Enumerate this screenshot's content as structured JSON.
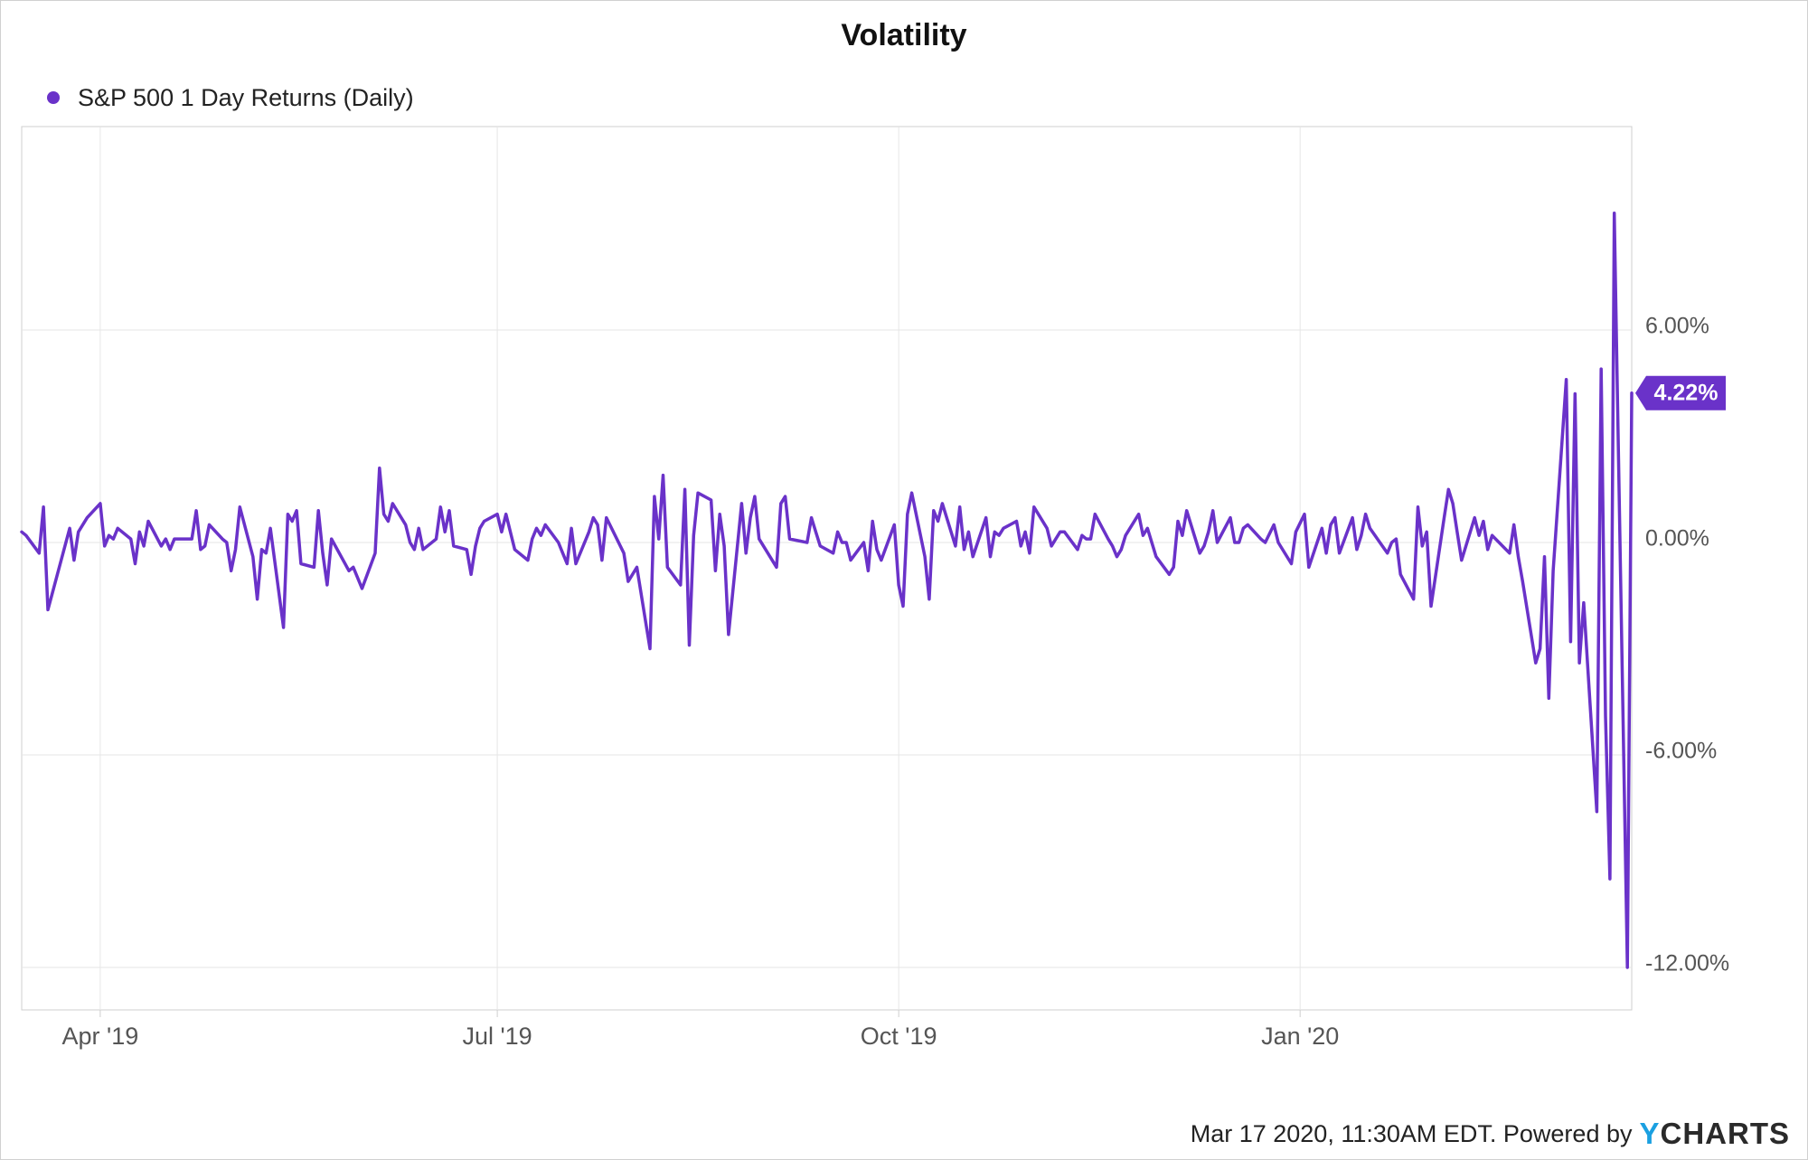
{
  "chart_data": {
    "type": "line",
    "title": "Volatility",
    "legend": {
      "position": "top-left"
    },
    "grid": true,
    "x_ticks": [
      "Apr '19",
      "Jul '19",
      "Oct '19",
      "Jan '20"
    ],
    "y_ticks": [
      "6.00%",
      "0.00%",
      "-6.00%",
      "-12.00%"
    ],
    "ylim": [
      -12.0,
      9.5
    ],
    "xlim": [
      "2019-03-14",
      "2020-03-17"
    ],
    "last_value_label": "4.22%",
    "series": [
      {
        "name": "S&P 500 1 Day Returns (Daily)",
        "color": "#6a32c9",
        "points": [
          [
            "2019-03-14",
            0.3
          ],
          [
            "2019-03-15",
            0.2
          ],
          [
            "2019-03-18",
            -0.3
          ],
          [
            "2019-03-19",
            1.0
          ],
          [
            "2019-03-20",
            -1.9
          ],
          [
            "2019-03-25",
            0.4
          ],
          [
            "2019-03-26",
            -0.5
          ],
          [
            "2019-03-27",
            0.3
          ],
          [
            "2019-03-29",
            0.7
          ],
          [
            "2019-04-01",
            1.1
          ],
          [
            "2019-04-02",
            -0.1
          ],
          [
            "2019-04-03",
            0.2
          ],
          [
            "2019-04-04",
            0.1
          ],
          [
            "2019-04-05",
            0.4
          ],
          [
            "2019-04-08",
            0.1
          ],
          [
            "2019-04-09",
            -0.6
          ],
          [
            "2019-04-10",
            0.3
          ],
          [
            "2019-04-11",
            -0.1
          ],
          [
            "2019-04-12",
            0.6
          ],
          [
            "2019-04-15",
            -0.1
          ],
          [
            "2019-04-16",
            0.1
          ],
          [
            "2019-04-17",
            -0.2
          ],
          [
            "2019-04-18",
            0.1
          ],
          [
            "2019-04-22",
            0.1
          ],
          [
            "2019-04-23",
            0.9
          ],
          [
            "2019-04-24",
            -0.2
          ],
          [
            "2019-04-25",
            -0.1
          ],
          [
            "2019-04-26",
            0.5
          ],
          [
            "2019-04-29",
            0.1
          ],
          [
            "2019-04-30",
            0.0
          ],
          [
            "2019-05-01",
            -0.8
          ],
          [
            "2019-05-02",
            -0.2
          ],
          [
            "2019-05-03",
            1.0
          ],
          [
            "2019-05-06",
            -0.4
          ],
          [
            "2019-05-07",
            -1.6
          ],
          [
            "2019-05-08",
            -0.2
          ],
          [
            "2019-05-09",
            -0.3
          ],
          [
            "2019-05-10",
            0.4
          ],
          [
            "2019-05-13",
            -2.4
          ],
          [
            "2019-05-14",
            0.8
          ],
          [
            "2019-05-15",
            0.6
          ],
          [
            "2019-05-16",
            0.9
          ],
          [
            "2019-05-17",
            -0.6
          ],
          [
            "2019-05-20",
            -0.7
          ],
          [
            "2019-05-21",
            0.9
          ],
          [
            "2019-05-22",
            -0.3
          ],
          [
            "2019-05-23",
            -1.2
          ],
          [
            "2019-05-24",
            0.1
          ],
          [
            "2019-05-28",
            -0.8
          ],
          [
            "2019-05-29",
            -0.7
          ],
          [
            "2019-05-31",
            -1.3
          ],
          [
            "2019-06-03",
            -0.3
          ],
          [
            "2019-06-04",
            2.1
          ],
          [
            "2019-06-05",
            0.8
          ],
          [
            "2019-06-06",
            0.6
          ],
          [
            "2019-06-07",
            1.1
          ],
          [
            "2019-06-10",
            0.5
          ],
          [
            "2019-06-11",
            0.0
          ],
          [
            "2019-06-12",
            -0.2
          ],
          [
            "2019-06-13",
            0.4
          ],
          [
            "2019-06-14",
            -0.2
          ],
          [
            "2019-06-17",
            0.1
          ],
          [
            "2019-06-18",
            1.0
          ],
          [
            "2019-06-19",
            0.3
          ],
          [
            "2019-06-20",
            0.9
          ],
          [
            "2019-06-21",
            -0.1
          ],
          [
            "2019-06-24",
            -0.2
          ],
          [
            "2019-06-25",
            -0.9
          ],
          [
            "2019-06-26",
            -0.1
          ],
          [
            "2019-06-27",
            0.4
          ],
          [
            "2019-06-28",
            0.6
          ],
          [
            "2019-07-01",
            0.8
          ],
          [
            "2019-07-02",
            0.3
          ],
          [
            "2019-07-03",
            0.8
          ],
          [
            "2019-07-05",
            -0.2
          ],
          [
            "2019-07-08",
            -0.5
          ],
          [
            "2019-07-09",
            0.1
          ],
          [
            "2019-07-10",
            0.4
          ],
          [
            "2019-07-11",
            0.2
          ],
          [
            "2019-07-12",
            0.5
          ],
          [
            "2019-07-15",
            0.0
          ],
          [
            "2019-07-16",
            -0.3
          ],
          [
            "2019-07-17",
            -0.6
          ],
          [
            "2019-07-18",
            0.4
          ],
          [
            "2019-07-19",
            -0.6
          ],
          [
            "2019-07-22",
            0.3
          ],
          [
            "2019-07-23",
            0.7
          ],
          [
            "2019-07-24",
            0.5
          ],
          [
            "2019-07-25",
            -0.5
          ],
          [
            "2019-07-26",
            0.7
          ],
          [
            "2019-07-30",
            -0.3
          ],
          [
            "2019-07-31",
            -1.1
          ],
          [
            "2019-08-01",
            -0.9
          ],
          [
            "2019-08-02",
            -0.7
          ],
          [
            "2019-08-05",
            -3.0
          ],
          [
            "2019-08-06",
            1.3
          ],
          [
            "2019-08-07",
            0.1
          ],
          [
            "2019-08-08",
            1.9
          ],
          [
            "2019-08-09",
            -0.7
          ],
          [
            "2019-08-12",
            -1.2
          ],
          [
            "2019-08-13",
            1.5
          ],
          [
            "2019-08-14",
            -2.9
          ],
          [
            "2019-08-15",
            0.2
          ],
          [
            "2019-08-16",
            1.4
          ],
          [
            "2019-08-19",
            1.2
          ],
          [
            "2019-08-20",
            -0.8
          ],
          [
            "2019-08-21",
            0.8
          ],
          [
            "2019-08-22",
            -0.1
          ],
          [
            "2019-08-23",
            -2.6
          ],
          [
            "2019-08-26",
            1.1
          ],
          [
            "2019-08-27",
            -0.3
          ],
          [
            "2019-08-28",
            0.7
          ],
          [
            "2019-08-29",
            1.3
          ],
          [
            "2019-08-30",
            0.1
          ],
          [
            "2019-09-03",
            -0.7
          ],
          [
            "2019-09-04",
            1.1
          ],
          [
            "2019-09-05",
            1.3
          ],
          [
            "2019-09-06",
            0.1
          ],
          [
            "2019-09-10",
            0.0
          ],
          [
            "2019-09-11",
            0.7
          ],
          [
            "2019-09-12",
            0.3
          ],
          [
            "2019-09-13",
            -0.1
          ],
          [
            "2019-09-16",
            -0.3
          ],
          [
            "2019-09-17",
            0.3
          ],
          [
            "2019-09-18",
            0.0
          ],
          [
            "2019-09-19",
            0.0
          ],
          [
            "2019-09-20",
            -0.5
          ],
          [
            "2019-09-23",
            0.0
          ],
          [
            "2019-09-24",
            -0.8
          ],
          [
            "2019-09-25",
            0.6
          ],
          [
            "2019-09-26",
            -0.2
          ],
          [
            "2019-09-27",
            -0.5
          ],
          [
            "2019-09-30",
            0.5
          ],
          [
            "2019-10-01",
            -1.2
          ],
          [
            "2019-10-02",
            -1.8
          ],
          [
            "2019-10-03",
            0.8
          ],
          [
            "2019-10-04",
            1.4
          ],
          [
            "2019-10-07",
            -0.4
          ],
          [
            "2019-10-08",
            -1.6
          ],
          [
            "2019-10-09",
            0.9
          ],
          [
            "2019-10-10",
            0.6
          ],
          [
            "2019-10-11",
            1.1
          ],
          [
            "2019-10-14",
            -0.1
          ],
          [
            "2019-10-15",
            1.0
          ],
          [
            "2019-10-16",
            -0.2
          ],
          [
            "2019-10-17",
            0.3
          ],
          [
            "2019-10-18",
            -0.4
          ],
          [
            "2019-10-21",
            0.7
          ],
          [
            "2019-10-22",
            -0.4
          ],
          [
            "2019-10-23",
            0.3
          ],
          [
            "2019-10-24",
            0.2
          ],
          [
            "2019-10-25",
            0.4
          ],
          [
            "2019-10-28",
            0.6
          ],
          [
            "2019-10-29",
            -0.1
          ],
          [
            "2019-10-30",
            0.3
          ],
          [
            "2019-10-31",
            -0.3
          ],
          [
            "2019-11-01",
            1.0
          ],
          [
            "2019-11-04",
            0.4
          ],
          [
            "2019-11-05",
            -0.1
          ],
          [
            "2019-11-06",
            0.1
          ],
          [
            "2019-11-07",
            0.3
          ],
          [
            "2019-11-08",
            0.3
          ],
          [
            "2019-11-11",
            -0.2
          ],
          [
            "2019-11-12",
            0.2
          ],
          [
            "2019-11-13",
            0.1
          ],
          [
            "2019-11-14",
            0.1
          ],
          [
            "2019-11-15",
            0.8
          ],
          [
            "2019-11-18",
            0.1
          ],
          [
            "2019-11-19",
            -0.1
          ],
          [
            "2019-11-20",
            -0.4
          ],
          [
            "2019-11-21",
            -0.2
          ],
          [
            "2019-11-22",
            0.2
          ],
          [
            "2019-11-25",
            0.8
          ],
          [
            "2019-11-26",
            0.2
          ],
          [
            "2019-11-27",
            0.4
          ],
          [
            "2019-11-29",
            -0.4
          ],
          [
            "2019-12-02",
            -0.9
          ],
          [
            "2019-12-03",
            -0.7
          ],
          [
            "2019-12-04",
            0.6
          ],
          [
            "2019-12-05",
            0.2
          ],
          [
            "2019-12-06",
            0.9
          ],
          [
            "2019-12-09",
            -0.3
          ],
          [
            "2019-12-10",
            -0.1
          ],
          [
            "2019-12-11",
            0.3
          ],
          [
            "2019-12-12",
            0.9
          ],
          [
            "2019-12-13",
            0.0
          ],
          [
            "2019-12-16",
            0.7
          ],
          [
            "2019-12-17",
            0.0
          ],
          [
            "2019-12-18",
            0.0
          ],
          [
            "2019-12-19",
            0.4
          ],
          [
            "2019-12-20",
            0.5
          ],
          [
            "2019-12-23",
            0.1
          ],
          [
            "2019-12-24",
            0.0
          ],
          [
            "2019-12-26",
            0.5
          ],
          [
            "2019-12-27",
            0.0
          ],
          [
            "2019-12-30",
            -0.6
          ],
          [
            "2019-12-31",
            0.3
          ],
          [
            "2020-01-02",
            0.8
          ],
          [
            "2020-01-03",
            -0.7
          ],
          [
            "2020-01-06",
            0.4
          ],
          [
            "2020-01-07",
            -0.3
          ],
          [
            "2020-01-08",
            0.5
          ],
          [
            "2020-01-09",
            0.7
          ],
          [
            "2020-01-10",
            -0.3
          ],
          [
            "2020-01-13",
            0.7
          ],
          [
            "2020-01-14",
            -0.2
          ],
          [
            "2020-01-15",
            0.2
          ],
          [
            "2020-01-16",
            0.8
          ],
          [
            "2020-01-17",
            0.4
          ],
          [
            "2020-01-21",
            -0.3
          ],
          [
            "2020-01-22",
            0.0
          ],
          [
            "2020-01-23",
            0.1
          ],
          [
            "2020-01-24",
            -0.9
          ],
          [
            "2020-01-27",
            -1.6
          ],
          [
            "2020-01-28",
            1.0
          ],
          [
            "2020-01-29",
            -0.1
          ],
          [
            "2020-01-30",
            0.3
          ],
          [
            "2020-01-31",
            -1.8
          ],
          [
            "2020-02-03",
            0.7
          ],
          [
            "2020-02-04",
            1.5
          ],
          [
            "2020-02-05",
            1.1
          ],
          [
            "2020-02-06",
            0.3
          ],
          [
            "2020-02-07",
            -0.5
          ],
          [
            "2020-02-10",
            0.7
          ],
          [
            "2020-02-11",
            0.2
          ],
          [
            "2020-02-12",
            0.6
          ],
          [
            "2020-02-13",
            -0.2
          ],
          [
            "2020-02-14",
            0.2
          ],
          [
            "2020-02-18",
            -0.3
          ],
          [
            "2020-02-19",
            0.5
          ],
          [
            "2020-02-20",
            -0.4
          ],
          [
            "2020-02-21",
            -1.1
          ],
          [
            "2020-02-24",
            -3.4
          ],
          [
            "2020-02-25",
            -3.0
          ],
          [
            "2020-02-26",
            -0.4
          ],
          [
            "2020-02-27",
            -4.4
          ],
          [
            "2020-02-28",
            -0.8
          ],
          [
            "2020-03-02",
            4.6
          ],
          [
            "2020-03-03",
            -2.8
          ],
          [
            "2020-03-04",
            4.2
          ],
          [
            "2020-03-05",
            -3.4
          ],
          [
            "2020-03-06",
            -1.7
          ],
          [
            "2020-03-09",
            -7.6
          ],
          [
            "2020-03-10",
            4.9
          ],
          [
            "2020-03-11",
            -4.9
          ],
          [
            "2020-03-12",
            -9.5
          ],
          [
            "2020-03-13",
            9.3
          ],
          [
            "2020-03-16",
            -12.0
          ],
          [
            "2020-03-17",
            4.22
          ]
        ]
      }
    ]
  },
  "footer": {
    "text": "Mar 17 2020, 11:30AM EDT.  Powered by",
    "logo_y": "Y",
    "logo_rest": "CHARTS"
  }
}
